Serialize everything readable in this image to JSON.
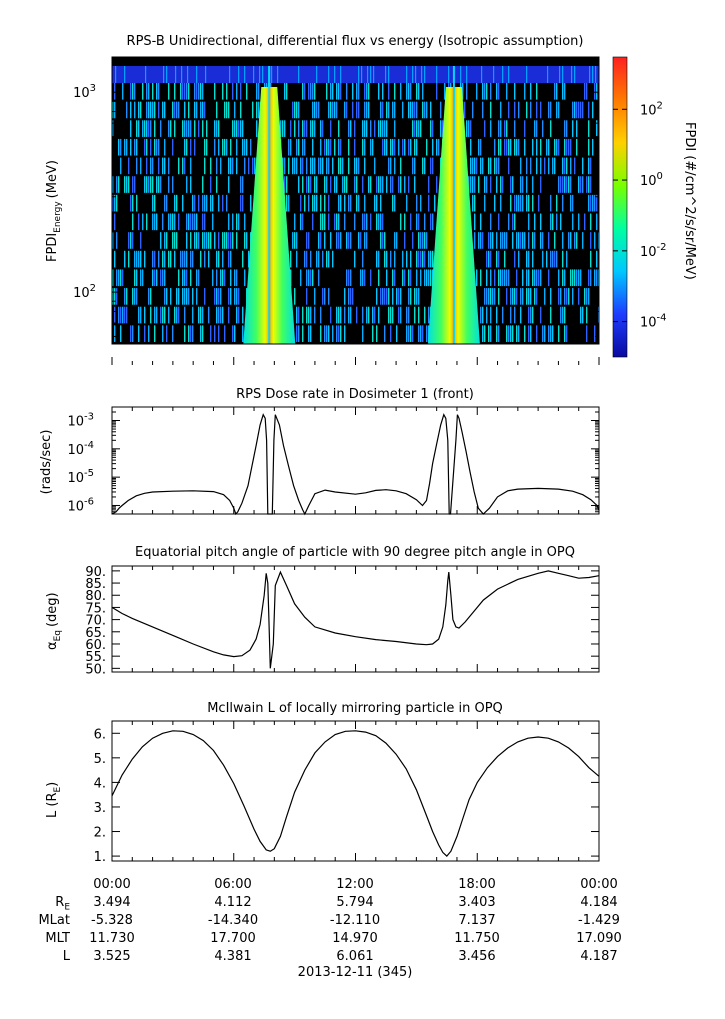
{
  "chart_data": [
    {
      "type": "heatmap",
      "title": "RPS-B  Unidirectional, differential flux vs energy (Isotropic assumption)",
      "ylabel": "FPDI",
      "ylabel_sub": "Energy",
      "ylabel_unit": "(MeV)",
      "yscale": "log",
      "ylim": [
        55,
        1500
      ],
      "yticks": [
        {
          "value": 100,
          "base": "10",
          "exp": "2"
        },
        {
          "value": 1000,
          "base": "10",
          "exp": "3"
        }
      ],
      "xlim_hours": [
        0,
        24
      ],
      "colorbar": {
        "label": "FPDI (#/cm^2/s/sr/MeV)",
        "scale": "log",
        "range": [
          1e-05,
          3000
        ],
        "ticks": [
          {
            "value": 0.0001,
            "base": "10",
            "exp": "-4"
          },
          {
            "value": 0.01,
            "base": "10",
            "exp": "-2"
          },
          {
            "value": 1,
            "base": "10",
            "exp": "0"
          },
          {
            "value": 100,
            "base": "10",
            "exp": "2"
          }
        ],
        "colors": [
          "#0a0aa0",
          "#1e3cff",
          "#00c8ff",
          "#00ffa0",
          "#78ff00",
          "#ffd000",
          "#ff7a00",
          "#ff2020"
        ]
      },
      "belt_passes_hours": [
        7.75,
        16.85
      ],
      "background_color": "#000000",
      "top_band_color": "#1a2cd6"
    },
    {
      "type": "line",
      "title": "RPS  Dose rate in Dosimeter 1 (front)",
      "ylabel": "(rads/sec)",
      "yscale": "log",
      "ylim": [
        5e-07,
        0.003
      ],
      "yticks": [
        {
          "value": 1e-06,
          "base": "10",
          "exp": "-6"
        },
        {
          "value": 1e-05,
          "base": "10",
          "exp": "-5"
        },
        {
          "value": 0.0001,
          "base": "10",
          "exp": "-4"
        },
        {
          "value": 0.001,
          "base": "10",
          "exp": "-3"
        }
      ],
      "x": [
        0,
        0.2,
        0.35,
        0.5,
        0.8,
        1.2,
        1.6,
        2,
        3,
        4,
        5,
        5.5,
        5.8,
        6.0,
        6.1,
        6.2,
        6.4,
        6.7,
        6.9,
        7.1,
        7.3,
        7.45,
        7.55,
        7.62,
        7.68,
        7.9,
        7.98,
        8.05,
        8.25,
        8.45,
        8.7,
        8.95,
        9.2,
        9.4,
        9.5,
        9.7,
        10,
        10.5,
        11,
        12,
        12.5,
        13,
        13.5,
        14,
        14.5,
        15,
        15.3,
        15.5,
        15.65,
        15.8,
        16,
        16.2,
        16.35,
        16.45,
        16.55,
        16.62,
        16.68,
        16.95,
        17.02,
        17.1,
        17.25,
        17.45,
        17.65,
        17.85,
        18.05,
        18.3,
        18.6,
        19,
        19.5,
        20,
        21,
        22,
        22.7,
        23.2,
        23.6,
        23.9,
        24
      ],
      "values": [
        5e-07,
        6e-07,
        8e-07,
        1e-06,
        1.5e-06,
        2.2e-06,
        2.7e-06,
        3e-06,
        3.2e-06,
        3.3e-06,
        3.1e-06,
        2.4e-06,
        1.5e-06,
        8e-07,
        5e-07,
        6e-07,
        1.2e-06,
        5e-06,
        2.5e-05,
        0.00013,
        0.0007,
        0.0016,
        0.0012,
        0.0002,
        5e-07,
        5e-07,
        0.0002,
        0.0016,
        0.0007,
        0.00013,
        2.5e-05,
        5e-06,
        1.5e-06,
        7e-07,
        5e-07,
        1e-06,
        2.6e-06,
        3.5e-06,
        3e-06,
        2.5e-06,
        2.8e-06,
        3.4e-06,
        3.6e-06,
        3.3e-06,
        2.6e-06,
        1.6e-06,
        1e-06,
        1.5e-06,
        6e-06,
        3e-05,
        0.00015,
        0.0007,
        0.0016,
        0.0012,
        0.0002,
        5e-07,
        5e-07,
        0.0002,
        0.0016,
        0.0012,
        0.0004,
        8e-05,
        1.5e-05,
        3e-06,
        8e-07,
        5e-07,
        8e-07,
        2e-06,
        3.3e-06,
        3.8e-06,
        4e-06,
        3.8e-06,
        3.2e-06,
        2.4e-06,
        1.6e-06,
        1e-06,
        7e-07
      ]
    },
    {
      "type": "line",
      "title": "Equatorial pitch angle of particle with 90 degree pitch angle in OPQ",
      "ylabel": "α",
      "ylabel_sub": "Eq",
      "ylabel_unit": "(deg)",
      "ylim": [
        48.5,
        92
      ],
      "yticks": [
        50,
        55,
        60,
        65,
        70,
        75,
        80,
        85,
        90
      ],
      "ytick_labels": [
        "50.",
        "55.",
        "60.",
        "65.",
        "70.",
        "75.",
        "80.",
        "85.",
        "90."
      ],
      "x": [
        0,
        0.5,
        1,
        2,
        3,
        4,
        5,
        5.5,
        6,
        6.4,
        6.8,
        7.1,
        7.3,
        7.5,
        7.6,
        7.68,
        7.72,
        7.8,
        7.95,
        8.05,
        8.3,
        8.6,
        9,
        9.5,
        10,
        11,
        12,
        13,
        14,
        15,
        15.5,
        15.8,
        16.1,
        16.3,
        16.45,
        16.55,
        16.6,
        16.7,
        16.8,
        16.95,
        17.1,
        17.4,
        17.8,
        18.3,
        19,
        20,
        21,
        21.5,
        22,
        22.5,
        23,
        23.5,
        24
      ],
      "values": [
        75,
        72.5,
        70.5,
        67,
        63.5,
        60,
        56.8,
        55.5,
        54.8,
        55.2,
        57.5,
        62,
        68,
        80,
        89,
        85,
        73,
        50,
        60,
        84,
        89.5,
        84,
        76.5,
        71,
        67,
        64.5,
        63,
        61.8,
        61,
        60,
        59.7,
        60,
        62,
        67,
        76,
        86,
        89.5,
        80,
        70,
        67,
        66.5,
        69,
        73,
        78,
        82.5,
        86.5,
        89,
        90,
        89,
        88,
        87,
        87.3,
        88
      ]
    },
    {
      "type": "line",
      "title": "McIlwain L of locally mirroring particle in OPQ",
      "ylabel": "L (R",
      "ylabel_sub": "E",
      "ylabel_unit": ")",
      "ylim": [
        0.8,
        6.5
      ],
      "yticks": [
        1,
        2,
        3,
        4,
        5,
        6
      ],
      "ytick_labels": [
        "1.",
        "2.",
        "3.",
        "4.",
        "5.",
        "6."
      ],
      "x": [
        0,
        0.5,
        1,
        1.5,
        2,
        2.5,
        3,
        3.5,
        4,
        4.5,
        5,
        5.5,
        6,
        6.5,
        7,
        7.3,
        7.6,
        7.8,
        8.0,
        8.3,
        8.6,
        9,
        9.5,
        10,
        10.5,
        11,
        11.5,
        12,
        12.5,
        13,
        13.5,
        14,
        14.5,
        15,
        15.5,
        15.8,
        16.1,
        16.3,
        16.5,
        16.7,
        17.0,
        17.3,
        17.6,
        18,
        18.5,
        19,
        19.5,
        20,
        20.5,
        21,
        21.5,
        22,
        22.5,
        23,
        23.5,
        24
      ],
      "values": [
        3.45,
        4.3,
        4.95,
        5.45,
        5.8,
        6.0,
        6.1,
        6.08,
        5.95,
        5.7,
        5.3,
        4.7,
        3.95,
        3.05,
        2.1,
        1.6,
        1.25,
        1.2,
        1.3,
        1.8,
        2.6,
        3.6,
        4.5,
        5.2,
        5.65,
        5.95,
        6.08,
        6.1,
        6.05,
        5.9,
        5.6,
        5.15,
        4.55,
        3.7,
        2.65,
        2.0,
        1.45,
        1.15,
        1.0,
        1.2,
        1.8,
        2.55,
        3.3,
        4.0,
        4.6,
        5.05,
        5.4,
        5.65,
        5.8,
        5.85,
        5.8,
        5.65,
        5.4,
        5.05,
        4.6,
        4.25
      ]
    }
  ],
  "xaxis": {
    "tick_labels": [
      "00:00",
      "06:00",
      "12:00",
      "18:00",
      "00:00"
    ],
    "major_hours": [
      0,
      6,
      12,
      18,
      24
    ],
    "date_label": "2013-12-11 (345)"
  },
  "ephemeris": {
    "rows": [
      {
        "label": "R",
        "label_sub": "E",
        "values": [
          "3.494",
          "4.112",
          "5.794",
          "3.403",
          "4.184"
        ]
      },
      {
        "label": "MLat",
        "label_sub": "",
        "values": [
          "-5.328",
          "-14.340",
          "-12.110",
          "7.137",
          "-1.429"
        ]
      },
      {
        "label": "MLT",
        "label_sub": "",
        "values": [
          "11.730",
          "17.700",
          "14.970",
          "11.750",
          "17.090"
        ]
      },
      {
        "label": "L",
        "label_sub": "",
        "values": [
          "3.525",
          "4.381",
          "6.061",
          "3.456",
          "4.187"
        ]
      }
    ]
  }
}
